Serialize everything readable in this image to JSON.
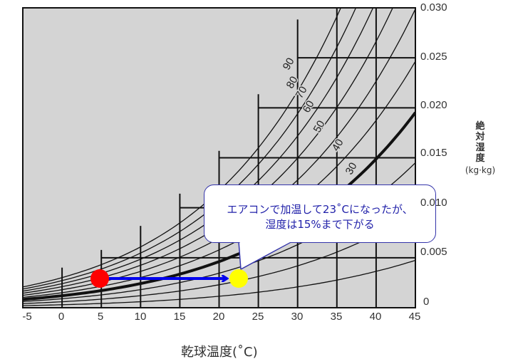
{
  "chart_data": {
    "type": "line",
    "title": "",
    "xlabel": "乾球温度(˚C)",
    "ylabel": "絶対湿度",
    "ylabel_unit": "(kg·kg)",
    "xlim": [
      -5,
      45
    ],
    "ylim": [
      0,
      0.03
    ],
    "x_ticks": [
      "-5",
      "0",
      "5",
      "10",
      "15",
      "20",
      "25",
      "30",
      "35",
      "40",
      "45"
    ],
    "y_ticks": [
      "0",
      "0.005",
      "0.010",
      "0.015",
      "0.020",
      "0.025",
      "0.030"
    ],
    "grid": "stepped (only beneath saturation curve)",
    "plot_background": "#d4d4d4",
    "relative_humidity_curves": [
      {
        "rh": 100,
        "label": ""
      },
      {
        "rh": 90,
        "label": "90"
      },
      {
        "rh": 80,
        "label": "80"
      },
      {
        "rh": 70,
        "label": "70"
      },
      {
        "rh": 60,
        "label": "60"
      },
      {
        "rh": 50,
        "label": "50"
      },
      {
        "rh": 40,
        "label": "40",
        "emphasized": true
      },
      {
        "rh": 30,
        "label": "30"
      },
      {
        "rh": 20,
        "label": ""
      },
      {
        "rh": 10,
        "label": ""
      }
    ],
    "points": [
      {
        "name": "start",
        "t": 5,
        "w": 0.0026,
        "color": "#ff0000"
      },
      {
        "name": "end",
        "t": 22.5,
        "w": 0.0026,
        "color": "#ffff00"
      }
    ],
    "arrow": {
      "from_t": 5,
      "to_t": 22,
      "w": 0.0026,
      "color": "#0000ee"
    },
    "annotation": {
      "line1": "エアコンで加温して23˚Cになったが、",
      "line2": "湿度は15%まで下がる",
      "text_color": "#2222aa",
      "border_color": "#3333aa"
    }
  },
  "axis": {
    "x_ticks": [
      "-5",
      "0",
      "5",
      "10",
      "15",
      "20",
      "25",
      "30",
      "35",
      "40",
      "45"
    ],
    "y_ticks": [
      "0",
      "0.005",
      "0.010",
      "0.015",
      "0.020",
      "0.025",
      "0.030"
    ],
    "xlabel": "乾球温度(˚C)",
    "ylabel_chars": [
      "絶",
      "対",
      "湿",
      "度"
    ],
    "ylabel_unit": "(kg·kg)"
  },
  "rh_labels": [
    "90",
    "80",
    "70",
    "60",
    "50",
    "40",
    "30"
  ],
  "callout": {
    "line1": "エアコンで加温して23˚Cになったが、",
    "line2": "湿度は15%まで下がる"
  }
}
